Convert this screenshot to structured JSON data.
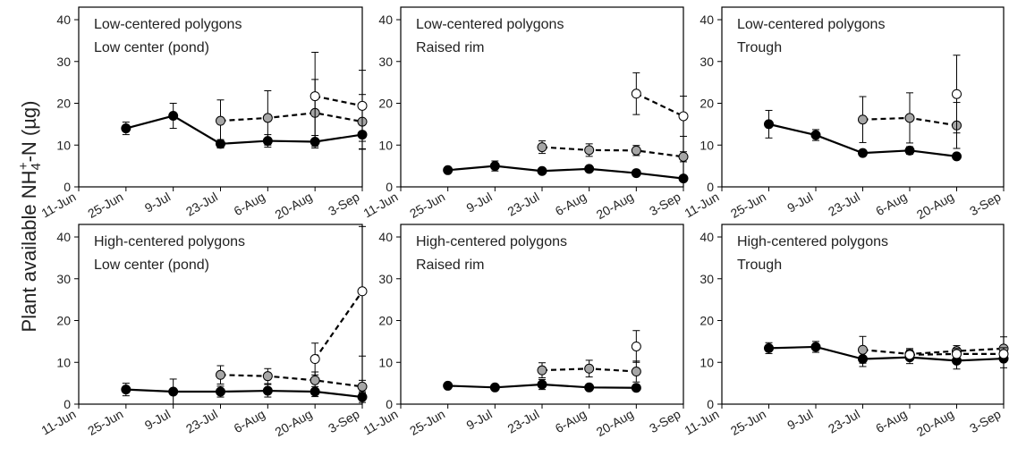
{
  "ylabel_main": "Plant available NH",
  "ylabel_sub": "4",
  "ylabel_sup": "+",
  "ylabel_tail": "-N (µg)",
  "chart_data": {
    "type": "line",
    "x_categories": [
      "11-Jun",
      "25-Jun",
      "9-Jul",
      "23-Jul",
      "6-Aug",
      "20-Aug",
      "3-Sep"
    ],
    "y_ticks": [
      0,
      10,
      20,
      30,
      40
    ],
    "ylim": [
      0,
      43
    ],
    "colors": {
      "solid": "#000000",
      "grey": "#a6a6a6",
      "open": "#ffffff",
      "line": "#000000"
    },
    "panels": [
      {
        "line1": "Low-centered polygons",
        "line2": "Low center (pond)",
        "series": [
          {
            "style": "solid",
            "points": [
              {
                "x": "25-Jun",
                "y": 14.0,
                "err": 1.5
              },
              {
                "x": "9-Jul",
                "y": 17.0,
                "err": 3.0
              },
              {
                "x": "23-Jul",
                "y": 10.3,
                "err": 1.0
              },
              {
                "x": "6-Aug",
                "y": 11.0,
                "err": 1.5
              },
              {
                "x": "20-Aug",
                "y": 10.8,
                "err": 1.5
              },
              {
                "x": "3-Sep",
                "y": 12.5,
                "err": 3.5
              }
            ]
          },
          {
            "style": "grey",
            "points": [
              {
                "x": "23-Jul",
                "y": 15.8,
                "err": 5.0
              },
              {
                "x": "6-Aug",
                "y": 16.5,
                "err": 6.5
              },
              {
                "x": "20-Aug",
                "y": 17.7,
                "err": 8.0
              },
              {
                "x": "3-Sep",
                "y": 15.6,
                "err": 6.5
              }
            ]
          },
          {
            "style": "open",
            "points": [
              {
                "x": "20-Aug",
                "y": 21.7,
                "err": 10.5
              },
              {
                "x": "3-Sep",
                "y": 19.4,
                "err": 8.5
              }
            ]
          }
        ]
      },
      {
        "line1": "Low-centered polygons",
        "line2": "Raised rim",
        "series": [
          {
            "style": "solid",
            "points": [
              {
                "x": "25-Jun",
                "y": 4.0,
                "err": 0.5
              },
              {
                "x": "9-Jul",
                "y": 5.0,
                "err": 1.2
              },
              {
                "x": "23-Jul",
                "y": 3.8,
                "err": 0.5
              },
              {
                "x": "6-Aug",
                "y": 4.3,
                "err": 0.5
              },
              {
                "x": "20-Aug",
                "y": 3.3,
                "err": 0.5
              },
              {
                "x": "3-Sep",
                "y": 2.0,
                "err": 0.3
              }
            ]
          },
          {
            "style": "grey",
            "points": [
              {
                "x": "23-Jul",
                "y": 9.5,
                "err": 1.5
              },
              {
                "x": "6-Aug",
                "y": 8.8,
                "err": 1.5
              },
              {
                "x": "20-Aug",
                "y": 8.7,
                "err": 1.2
              },
              {
                "x": "3-Sep",
                "y": 7.2,
                "err": 1.2
              }
            ]
          },
          {
            "style": "open",
            "points": [
              {
                "x": "20-Aug",
                "y": 22.3,
                "err": 5.0
              },
              {
                "x": "3-Sep",
                "y": 16.9,
                "err": 4.8
              }
            ]
          }
        ]
      },
      {
        "line1": "Low-centered polygons",
        "line2": "Trough",
        "series": [
          {
            "style": "solid",
            "points": [
              {
                "x": "25-Jun",
                "y": 15.0,
                "err": 3.3
              },
              {
                "x": "9-Jul",
                "y": 12.4,
                "err": 1.3
              },
              {
                "x": "23-Jul",
                "y": 8.1,
                "err": 0.7
              },
              {
                "x": "6-Aug",
                "y": 8.7,
                "err": 0.9
              },
              {
                "x": "20-Aug",
                "y": 7.3,
                "err": 0.6
              }
            ]
          },
          {
            "style": "grey",
            "points": [
              {
                "x": "23-Jul",
                "y": 16.1,
                "err": 5.5
              },
              {
                "x": "6-Aug",
                "y": 16.5,
                "err": 6.0
              },
              {
                "x": "20-Aug",
                "y": 14.7,
                "err": 5.5
              }
            ]
          },
          {
            "style": "open",
            "points": [
              {
                "x": "20-Aug",
                "y": 22.2,
                "err": 9.3
              }
            ]
          }
        ]
      },
      {
        "line1": "High-centered polygons",
        "line2": "Low center (pond)",
        "series": [
          {
            "style": "solid",
            "points": [
              {
                "x": "25-Jun",
                "y": 3.5,
                "err": 1.5
              },
              {
                "x": "9-Jul",
                "y": 3.0,
                "err": 3.0
              },
              {
                "x": "23-Jul",
                "y": 3.0,
                "err": 1.3
              },
              {
                "x": "6-Aug",
                "y": 3.2,
                "err": 1.5
              },
              {
                "x": "20-Aug",
                "y": 3.0,
                "err": 1.2
              },
              {
                "x": "3-Sep",
                "y": 1.7,
                "err": 1.3
              }
            ]
          },
          {
            "style": "grey",
            "points": [
              {
                "x": "23-Jul",
                "y": 7.0,
                "err": 2.2
              },
              {
                "x": "6-Aug",
                "y": 6.7,
                "err": 1.8
              },
              {
                "x": "20-Aug",
                "y": 5.7,
                "err": 2.0
              },
              {
                "x": "3-Sep",
                "y": 4.2,
                "err": 1.5
              }
            ]
          },
          {
            "style": "open",
            "points": [
              {
                "x": "20-Aug",
                "y": 10.8,
                "err": 3.8
              },
              {
                "x": "3-Sep",
                "y": 27.0,
                "err": 15.5
              }
            ]
          }
        ]
      },
      {
        "line1": "High-centered polygons",
        "line2": "Raised rim",
        "series": [
          {
            "style": "solid",
            "points": [
              {
                "x": "25-Jun",
                "y": 4.4,
                "err": 0.5
              },
              {
                "x": "9-Jul",
                "y": 4.0,
                "err": 0.5
              },
              {
                "x": "23-Jul",
                "y": 4.7,
                "err": 1.2
              },
              {
                "x": "6-Aug",
                "y": 4.0,
                "err": 0.5
              },
              {
                "x": "20-Aug",
                "y": 3.9,
                "err": 0.5
              }
            ]
          },
          {
            "style": "grey",
            "points": [
              {
                "x": "23-Jul",
                "y": 8.1,
                "err": 1.8
              },
              {
                "x": "6-Aug",
                "y": 8.5,
                "err": 2.0
              },
              {
                "x": "20-Aug",
                "y": 7.8,
                "err": 2.5
              }
            ]
          },
          {
            "style": "open",
            "points": [
              {
                "x": "20-Aug",
                "y": 13.8,
                "err": 3.8
              }
            ]
          }
        ]
      },
      {
        "line1": "High-centered polygons",
        "line2": "Trough",
        "series": [
          {
            "style": "solid",
            "points": [
              {
                "x": "25-Jun",
                "y": 13.4,
                "err": 1.3
              },
              {
                "x": "9-Jul",
                "y": 13.7,
                "err": 1.3
              },
              {
                "x": "23-Jul",
                "y": 10.8,
                "err": 1.8
              },
              {
                "x": "6-Aug",
                "y": 11.2,
                "err": 1.5
              },
              {
                "x": "20-Aug",
                "y": 10.4,
                "err": 2.0
              },
              {
                "x": "3-Sep",
                "y": 10.9,
                "err": 2.2
              }
            ]
          },
          {
            "style": "grey",
            "points": [
              {
                "x": "23-Jul",
                "y": 13.0,
                "err": 3.2
              },
              {
                "x": "6-Aug",
                "y": 12.0,
                "err": 1.3
              },
              {
                "x": "20-Aug",
                "y": 12.7,
                "err": 1.3
              },
              {
                "x": "3-Sep",
                "y": 13.3,
                "err": 2.8
              }
            ]
          },
          {
            "style": "open",
            "points": [
              {
                "x": "6-Aug",
                "y": 11.8,
                "err": 1.2
              },
              {
                "x": "20-Aug",
                "y": 12.0,
                "err": 1.3
              },
              {
                "x": "3-Sep",
                "y": 12.0,
                "err": 1.5
              }
            ]
          }
        ]
      }
    ]
  }
}
